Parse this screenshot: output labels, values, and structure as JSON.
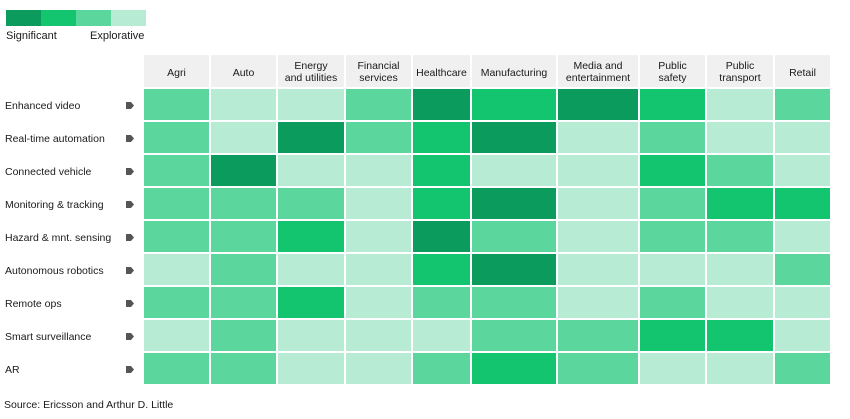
{
  "legend": {
    "left_label": "Significant",
    "right_label": "Explorative",
    "colors": [
      "#0b9b5c",
      "#14c56f",
      "#5bd79e",
      "#b8ebd3"
    ]
  },
  "chart_data": {
    "type": "heatmap",
    "columns": [
      [
        "Agri"
      ],
      [
        "Auto"
      ],
      [
        "Energy",
        "and utilities"
      ],
      [
        "Financial",
        "services"
      ],
      [
        "Healthcare"
      ],
      [
        "Manufacturing"
      ],
      [
        "Media and",
        "entertainment"
      ],
      [
        "Public",
        "safety"
      ],
      [
        "Public",
        "transport"
      ],
      [
        "Retail"
      ]
    ],
    "rows": [
      "Enhanced video",
      "Real-time automation",
      "Connected vehicle",
      "Monitoring & tracking",
      "Hazard & mnt. sensing",
      "Autonomous robotics",
      "Remote ops",
      "Smart surveillance",
      "AR"
    ],
    "scale": [
      "Significant",
      "",
      "",
      "Explorative"
    ],
    "values": [
      [
        3,
        4,
        4,
        3,
        1,
        2,
        1,
        2,
        4,
        3
      ],
      [
        3,
        4,
        1,
        3,
        2,
        1,
        4,
        3,
        4,
        4
      ],
      [
        3,
        1,
        4,
        4,
        2,
        4,
        4,
        2,
        3,
        4
      ],
      [
        3,
        3,
        3,
        4,
        2,
        1,
        4,
        3,
        2,
        2
      ],
      [
        3,
        3,
        2,
        4,
        1,
        3,
        4,
        3,
        3,
        4
      ],
      [
        4,
        3,
        4,
        4,
        2,
        1,
        4,
        4,
        4,
        3
      ],
      [
        3,
        3,
        2,
        4,
        3,
        3,
        4,
        3,
        4,
        4
      ],
      [
        4,
        3,
        4,
        4,
        4,
        3,
        3,
        2,
        2,
        4
      ],
      [
        3,
        3,
        4,
        4,
        3,
        2,
        3,
        4,
        4,
        3
      ]
    ]
  },
  "source": "Source: Ericsson and Arthur D. Little"
}
